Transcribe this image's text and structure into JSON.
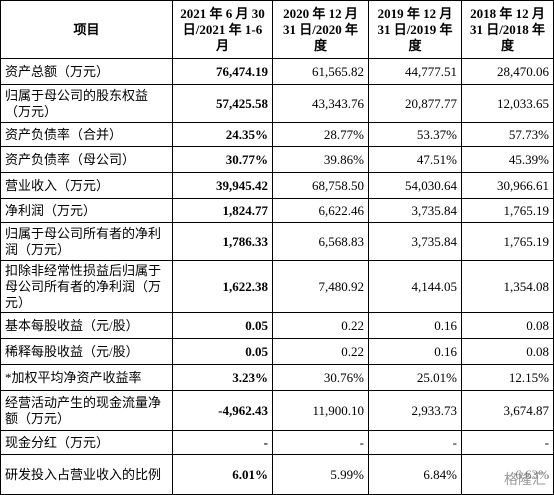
{
  "table": {
    "header": [
      "项目",
      "2021 年 6 月 30 日/2021 年 1-6 月",
      "2020 年 12 月 31 日/2020 年度",
      "2019 年 12 月 31 日/2019 年度",
      "2018 年 12 月 31 日/2018 年度"
    ],
    "rows": [
      [
        "资产总额（万元）",
        "76,474.19",
        "61,565.82",
        "44,777.51",
        "28,470.06"
      ],
      [
        "归属于母公司的股东权益（万元）",
        "57,425.58",
        "43,343.76",
        "20,877.77",
        "12,033.65"
      ],
      [
        "资产负债率（合并）",
        "24.35%",
        "28.77%",
        "53.37%",
        "57.73%"
      ],
      [
        "资产负债率（母公司）",
        "30.77%",
        "39.86%",
        "47.51%",
        "45.39%"
      ],
      [
        "营业收入（万元）",
        "39,945.42",
        "68,758.50",
        "54,030.64",
        "30,966.61"
      ],
      [
        "净利润（万元）",
        "1,824.77",
        "6,622.46",
        "3,735.84",
        "1,765.19"
      ],
      [
        "归属于母公司所有者的净利润（万元）",
        "1,786.33",
        "6,568.83",
        "3,735.84",
        "1,765.19"
      ],
      [
        "扣除非经常性损益后归属于母公司所有者的净利润（万元）",
        "1,622.38",
        "7,480.92",
        "4,144.05",
        "1,354.08"
      ],
      [
        "基本每股收益（元/股）",
        "0.05",
        "0.22",
        "0.16",
        "0.08"
      ],
      [
        "稀释每股收益（元/股）",
        "0.05",
        "0.22",
        "0.16",
        "0.08"
      ],
      [
        "*加权平均净资产收益率",
        "3.23%",
        "30.76%",
        "25.01%",
        "12.15%"
      ],
      [
        "经营活动产生的现金流量净额（万元）",
        "-4,962.43",
        "11,900.10",
        "2,933.73",
        "3,674.87"
      ],
      [
        "现金分红（万元）",
        "-",
        "-",
        "-",
        "-"
      ],
      [
        "研发投入占营业收入的比例",
        "6.01%",
        "5.99%",
        "6.84%",
        "6.63%"
      ]
    ]
  },
  "watermark": "格隆汇"
}
